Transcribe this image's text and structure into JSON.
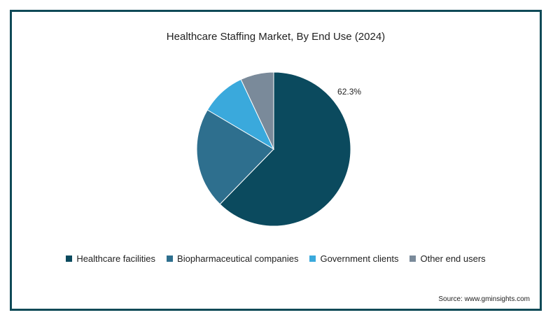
{
  "chart_data": {
    "type": "pie",
    "title": "Healthcare Staffing Market, By End Use (2024)",
    "slices": [
      {
        "label": "Healthcare facilities",
        "value": 62.3,
        "color": "#0b4a5e",
        "data_label": "62.3%"
      },
      {
        "label": "Biopharmaceutical companies",
        "value": 21.2,
        "color": "#2e6f8e",
        "data_label": ""
      },
      {
        "label": "Government clients",
        "value": 9.5,
        "color": "#3aa9dc",
        "data_label": ""
      },
      {
        "label": "Other end users",
        "value": 7.0,
        "color": "#7a8a9a",
        "data_label": ""
      }
    ],
    "legend_position": "bottom"
  },
  "source": "Source: www.gminsights.com",
  "frame_color": "#0f4a57"
}
